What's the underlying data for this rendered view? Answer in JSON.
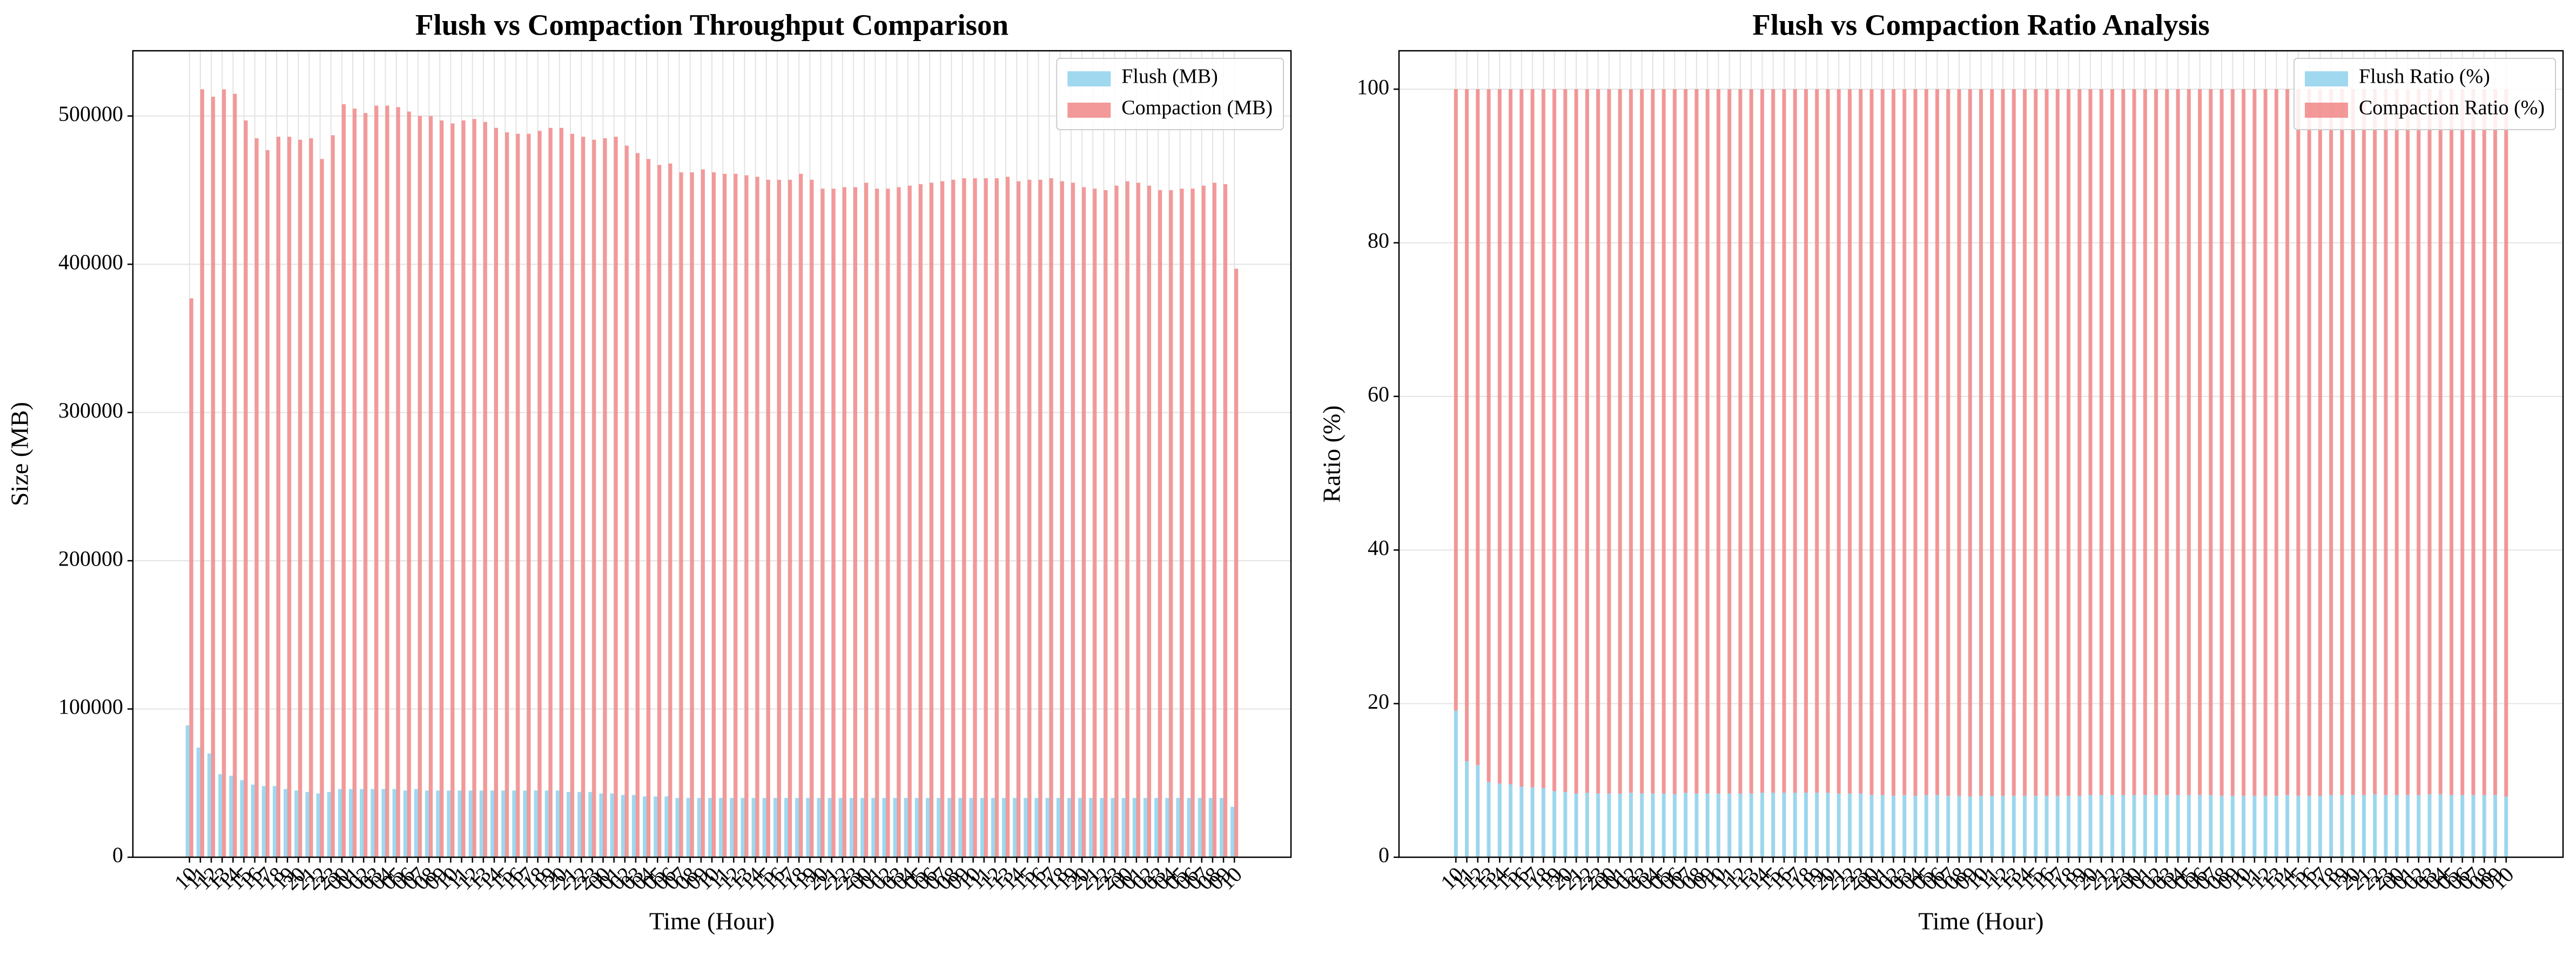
{
  "chart_data": [
    {
      "type": "grouped_bar",
      "title": "Flush vs Compaction Throughput Comparison",
      "xlabel": "Time (Hour)",
      "ylabel": "Size (MB)",
      "categories": [
        "10",
        "11",
        "12",
        "13",
        "14",
        "15",
        "16",
        "17",
        "18",
        "19",
        "20",
        "21",
        "22",
        "23",
        "00",
        "01",
        "02",
        "03",
        "04",
        "05",
        "06",
        "07",
        "08",
        "09",
        "10",
        "11",
        "12",
        "13",
        "14",
        "15",
        "16",
        "17",
        "18",
        "19",
        "20",
        "21",
        "22",
        "23",
        "00",
        "01",
        "02",
        "03",
        "04",
        "05",
        "06",
        "07",
        "08",
        "09",
        "10",
        "11",
        "12",
        "13",
        "14",
        "15",
        "16",
        "17",
        "18",
        "19",
        "20",
        "21",
        "22",
        "23",
        "00",
        "01",
        "02",
        "03",
        "04",
        "05",
        "06",
        "07",
        "08",
        "09",
        "10",
        "11",
        "12",
        "13",
        "14",
        "15",
        "16",
        "17",
        "18",
        "19",
        "20",
        "21",
        "22",
        "23",
        "00",
        "01",
        "02",
        "03",
        "04",
        "05",
        "06",
        "07",
        "08",
        "09",
        "10"
      ],
      "series": [
        {
          "name": "Flush (MB)",
          "color": "#87ceeb",
          "values": [
            89000,
            74000,
            70000,
            56000,
            55000,
            52000,
            49000,
            48000,
            48000,
            46000,
            45000,
            44000,
            43000,
            44000,
            46000,
            46000,
            46000,
            46000,
            46000,
            46000,
            45000,
            46000,
            45000,
            45000,
            45000,
            45000,
            45000,
            45000,
            45000,
            45000,
            45000,
            45000,
            45000,
            45000,
            45000,
            44000,
            44000,
            44000,
            43000,
            43000,
            42000,
            42000,
            41000,
            41000,
            41000,
            40000,
            40000,
            40000,
            40000,
            40000,
            40000,
            40000,
            40000,
            40000,
            40000,
            40000,
            40000,
            40000,
            40000,
            40000,
            40000,
            40000,
            40000,
            40000,
            40000,
            40000,
            40000,
            40000,
            40000,
            40000,
            40000,
            40000,
            40000,
            40000,
            40000,
            40000,
            40000,
            40000,
            40000,
            40000,
            40000,
            40000,
            40000,
            40000,
            40000,
            40000,
            40000,
            40000,
            40000,
            40000,
            40000,
            40000,
            40000,
            40000,
            40000,
            40000,
            34000
          ]
        },
        {
          "name": "Compaction (MB)",
          "color": "#f08080",
          "values": [
            377000,
            518000,
            513000,
            518000,
            515000,
            497000,
            485000,
            477000,
            486000,
            486000,
            484000,
            485000,
            471000,
            487000,
            508000,
            505000,
            502000,
            507000,
            507000,
            506000,
            503000,
            500000,
            500000,
            497000,
            495000,
            497000,
            498000,
            496000,
            492000,
            489000,
            488000,
            488000,
            490000,
            492000,
            492000,
            488000,
            486000,
            484000,
            485000,
            486000,
            480000,
            475000,
            471000,
            467000,
            468000,
            462000,
            462000,
            464000,
            462000,
            461000,
            461000,
            460000,
            459000,
            457000,
            457000,
            457000,
            461000,
            457000,
            451000,
            451000,
            452000,
            452000,
            455000,
            451000,
            451000,
            452000,
            453000,
            454000,
            455000,
            456000,
            457000,
            458000,
            458000,
            458000,
            458000,
            459000,
            456000,
            457000,
            457000,
            458000,
            456000,
            455000,
            452000,
            451000,
            450000,
            453000,
            456000,
            455000,
            453000,
            450000,
            450000,
            451000,
            451000,
            453000,
            455000,
            454000,
            397000
          ]
        }
      ],
      "ylim": [
        0,
        544000
      ],
      "yticks": [
        0,
        100000,
        200000,
        300000,
        400000,
        500000
      ],
      "grid": true,
      "legend": "upper right"
    },
    {
      "type": "stacked_bar",
      "title": "Flush vs Compaction Ratio Analysis",
      "xlabel": "Time (Hour)",
      "ylabel": "Ratio (%)",
      "categories": [
        "10",
        "11",
        "12",
        "13",
        "14",
        "15",
        "16",
        "17",
        "18",
        "19",
        "20",
        "21",
        "22",
        "23",
        "00",
        "01",
        "02",
        "03",
        "04",
        "05",
        "06",
        "07",
        "08",
        "09",
        "10",
        "11",
        "12",
        "13",
        "14",
        "15",
        "16",
        "17",
        "18",
        "19",
        "20",
        "21",
        "22",
        "23",
        "00",
        "01",
        "02",
        "03",
        "04",
        "05",
        "06",
        "07",
        "08",
        "09",
        "10",
        "11",
        "12",
        "13",
        "14",
        "15",
        "16",
        "17",
        "18",
        "19",
        "20",
        "21",
        "22",
        "23",
        "00",
        "01",
        "02",
        "03",
        "04",
        "05",
        "06",
        "07",
        "08",
        "09",
        "10",
        "11",
        "12",
        "13",
        "14",
        "15",
        "16",
        "17",
        "18",
        "19",
        "20",
        "21",
        "22",
        "23",
        "00",
        "01",
        "02",
        "03",
        "04",
        "05",
        "06",
        "07",
        "08",
        "09",
        "10"
      ],
      "series": [
        {
          "name": "Flush Ratio (%)",
          "color": "#87ceeb",
          "values": [
            19.1,
            12.5,
            12.0,
            9.8,
            9.6,
            9.5,
            9.2,
            9.1,
            9.0,
            8.6,
            8.5,
            8.3,
            8.4,
            8.3,
            8.3,
            8.3,
            8.4,
            8.3,
            8.3,
            8.3,
            8.2,
            8.4,
            8.3,
            8.3,
            8.3,
            8.3,
            8.3,
            8.3,
            8.4,
            8.4,
            8.4,
            8.4,
            8.4,
            8.4,
            8.4,
            8.3,
            8.3,
            8.3,
            8.1,
            8.1,
            8.0,
            8.1,
            8.0,
            8.1,
            8.1,
            8.0,
            8.0,
            7.9,
            8.0,
            8.0,
            8.0,
            8.0,
            8.0,
            8.0,
            8.0,
            8.0,
            8.0,
            8.0,
            8.1,
            8.1,
            8.1,
            8.1,
            8.1,
            8.1,
            8.1,
            8.1,
            8.1,
            8.1,
            8.1,
            8.1,
            8.0,
            8.0,
            8.0,
            8.0,
            8.0,
            8.0,
            8.1,
            8.0,
            8.0,
            8.0,
            8.1,
            8.1,
            8.1,
            8.1,
            8.2,
            8.1,
            8.1,
            8.1,
            8.1,
            8.2,
            8.2,
            8.1,
            8.1,
            8.1,
            8.1,
            8.1,
            7.9
          ]
        },
        {
          "name": "Compaction Ratio (%)",
          "color": "#f08080",
          "values": [
            80.9,
            87.5,
            88.0,
            90.2,
            90.4,
            90.5,
            90.8,
            90.9,
            91.0,
            91.4,
            91.5,
            91.7,
            91.6,
            91.7,
            91.7,
            91.7,
            91.6,
            91.7,
            91.7,
            91.7,
            91.8,
            91.6,
            91.7,
            91.7,
            91.7,
            91.7,
            91.7,
            91.7,
            91.6,
            91.6,
            91.6,
            91.6,
            91.6,
            91.6,
            91.6,
            91.7,
            91.7,
            91.7,
            91.9,
            91.9,
            92.0,
            91.9,
            92.0,
            91.9,
            91.9,
            92.0,
            92.0,
            92.1,
            92.0,
            92.0,
            92.0,
            92.0,
            92.0,
            92.0,
            92.0,
            92.0,
            92.0,
            92.0,
            91.9,
            91.9,
            91.9,
            91.9,
            91.9,
            91.9,
            91.9,
            91.9,
            91.9,
            91.9,
            91.9,
            91.9,
            92.0,
            92.0,
            92.0,
            92.0,
            92.0,
            92.0,
            91.9,
            92.0,
            92.0,
            92.0,
            91.9,
            91.9,
            91.9,
            91.9,
            91.8,
            91.9,
            91.9,
            91.9,
            91.9,
            91.8,
            91.8,
            91.9,
            91.9,
            91.9,
            91.9,
            91.9,
            92.1
          ]
        }
      ],
      "ylim": [
        0,
        105
      ],
      "yticks": [
        0,
        20,
        40,
        60,
        80,
        100
      ],
      "grid": true,
      "legend": "upper right"
    }
  ]
}
